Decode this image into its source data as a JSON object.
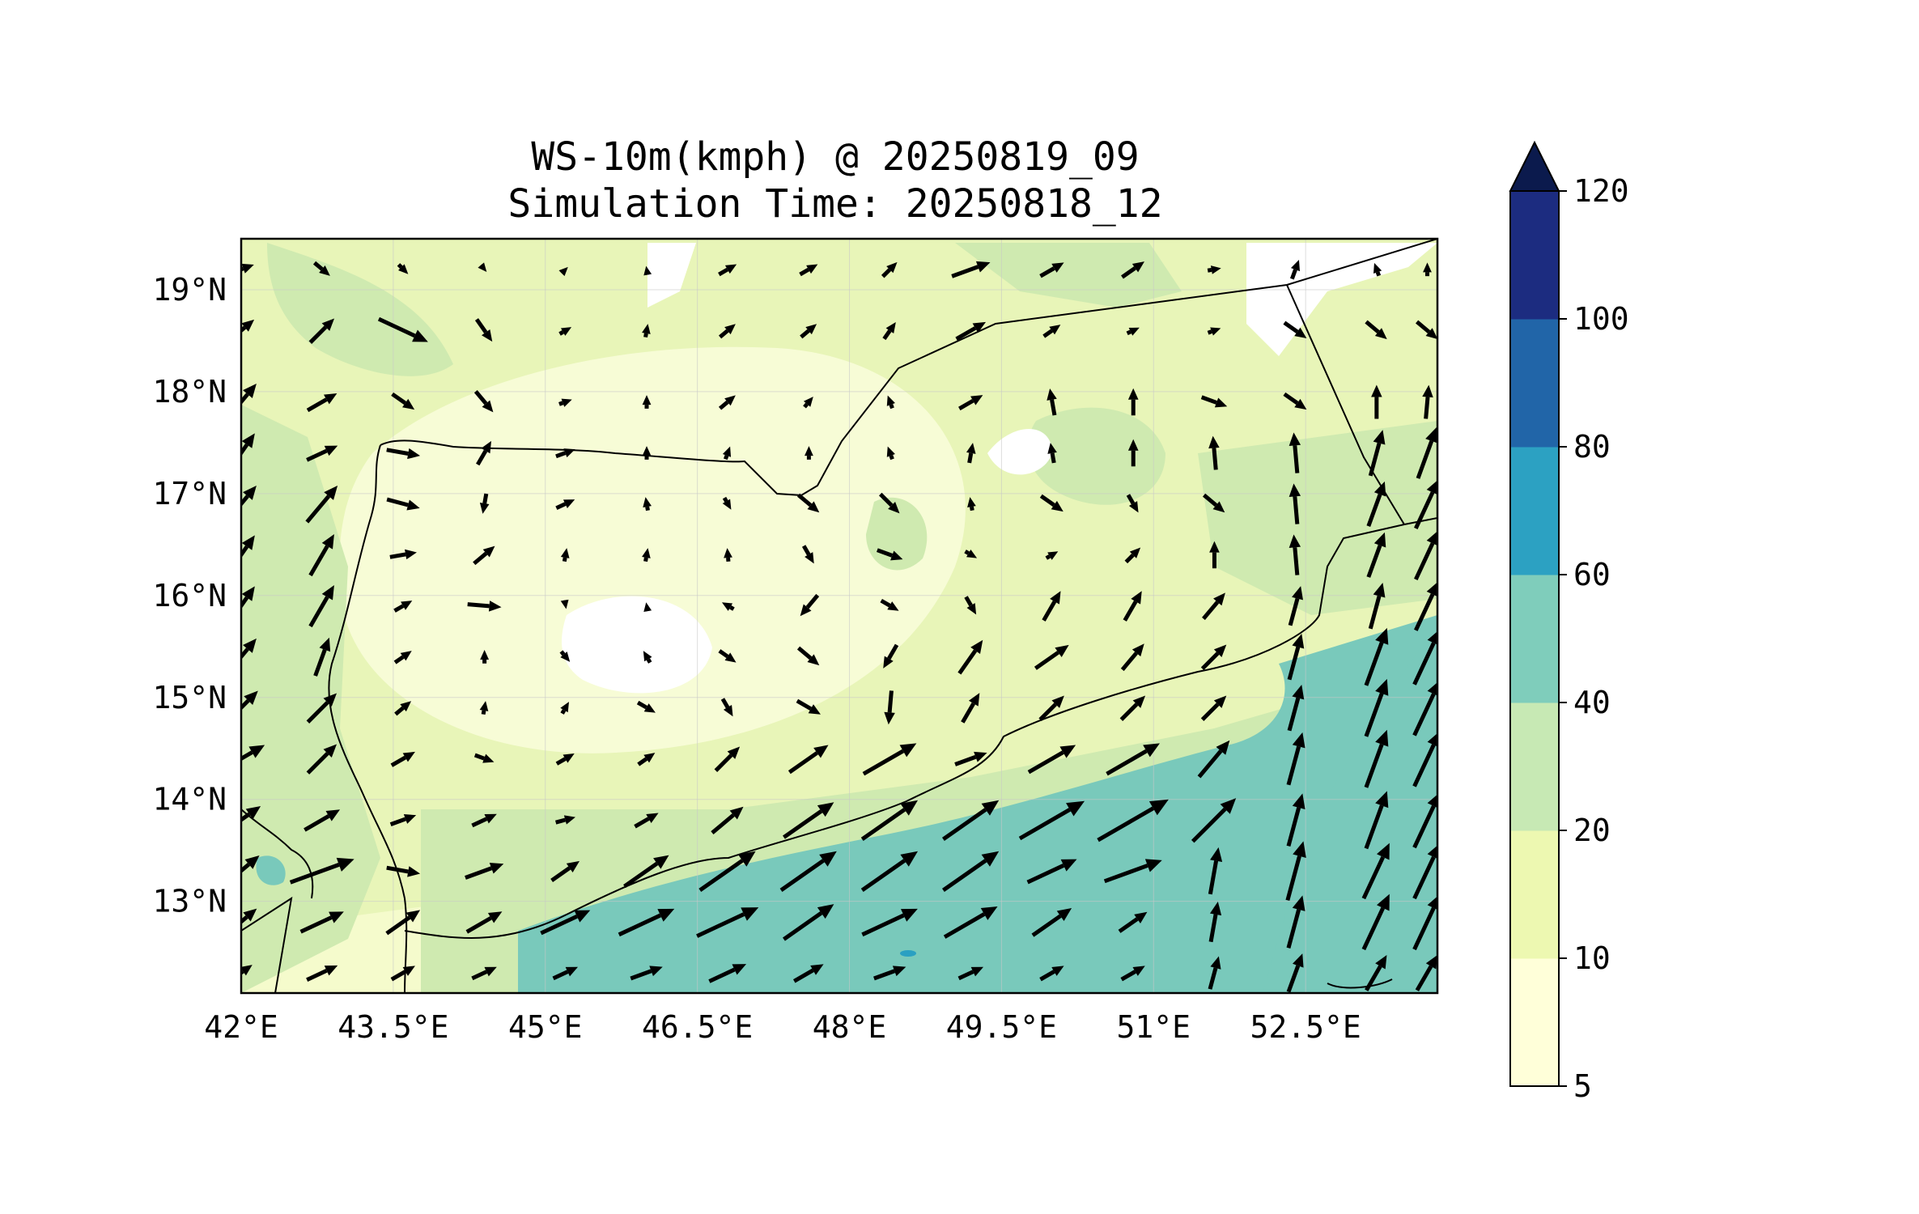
{
  "title": {
    "line1": "WS-10m(kmph) @ 20250819_09",
    "line2": "Simulation Time: 20250818_12"
  },
  "map": {
    "lon_range": [
      42,
      53.8
    ],
    "lat_range": [
      12.1,
      19.5
    ],
    "lon_ticks": [
      "42°E",
      "43.5°E",
      "45°E",
      "46.5°E",
      "48°E",
      "49.5°E",
      "51°E",
      "52.5°E"
    ],
    "lat_ticks": [
      "19°N",
      "18°N",
      "17°N",
      "16°N",
      "15°N",
      "14°N",
      "13°N"
    ],
    "gridlines": true,
    "region_colors": {
      "land_light": "#f5fbcc",
      "land_mid": "#e8f5b8",
      "land_green": "#cfeab0",
      "calm": "#ffffff",
      "sea_teal": "#79c9bb",
      "sea_deep": "#2aa0c2"
    },
    "border_color": "#000000"
  },
  "colorbar": {
    "levels": [
      "5",
      "10",
      "20",
      "40",
      "60",
      "80",
      "100",
      "120"
    ],
    "colors": [
      "#ffffd9",
      "#edf8b1",
      "#c7e9b4",
      "#7fcdbb",
      "#2ca1c2",
      "#2165a8",
      "#1c2c80"
    ],
    "extend_color": "#0b1a4d",
    "extend": "max"
  },
  "wind_vectors": {
    "lon": [
      42,
      42.8,
      43.6,
      44.4,
      45.2,
      46,
      46.8,
      47.6,
      48.4,
      49.2,
      50,
      50.8,
      51.6,
      52.4,
      53.2,
      53.7
    ],
    "lat": [
      19.2,
      18.6,
      17.9,
      17.4,
      16.9,
      16.4,
      15.9,
      15.4,
      14.9,
      14.4,
      13.8,
      13.3,
      12.8,
      12.3
    ],
    "rows": [
      [
        [
          8,
          20
        ],
        [
          6,
          -40
        ],
        [
          4,
          -45
        ],
        [
          2,
          -50
        ],
        [
          2,
          45
        ],
        [
          2,
          100
        ],
        [
          6,
          30
        ],
        [
          6,
          30
        ],
        [
          6,
          45
        ],
        [
          12,
          20
        ],
        [
          8,
          30
        ],
        [
          8,
          35
        ],
        [
          4,
          10
        ],
        [
          6,
          70
        ],
        [
          4,
          110
        ],
        [
          4,
          90
        ]
      ],
      [
        [
          10,
          40
        ],
        [
          10,
          45
        ],
        [
          16,
          -25
        ],
        [
          8,
          -55
        ],
        [
          4,
          30
        ],
        [
          4,
          80
        ],
        [
          6,
          40
        ],
        [
          6,
          40
        ],
        [
          6,
          55
        ],
        [
          10,
          30
        ],
        [
          6,
          35
        ],
        [
          4,
          25
        ],
        [
          4,
          20
        ],
        [
          8,
          -35
        ],
        [
          8,
          -40
        ],
        [
          8,
          -40
        ]
      ],
      [
        [
          14,
          50
        ],
        [
          10,
          30
        ],
        [
          8,
          -35
        ],
        [
          8,
          -50
        ],
        [
          4,
          20
        ],
        [
          4,
          90
        ],
        [
          6,
          40
        ],
        [
          4,
          50
        ],
        [
          4,
          110
        ],
        [
          8,
          30
        ],
        [
          8,
          100
        ],
        [
          8,
          90
        ],
        [
          8,
          -20
        ],
        [
          8,
          -35
        ],
        [
          10,
          90
        ],
        [
          10,
          85
        ]
      ],
      [
        [
          14,
          55
        ],
        [
          10,
          25
        ],
        [
          10,
          -10
        ],
        [
          8,
          60
        ],
        [
          6,
          20
        ],
        [
          4,
          90
        ],
        [
          4,
          70
        ],
        [
          4,
          90
        ],
        [
          4,
          110
        ],
        [
          6,
          80
        ],
        [
          6,
          100
        ],
        [
          8,
          90
        ],
        [
          10,
          95
        ],
        [
          12,
          95
        ],
        [
          14,
          75
        ],
        [
          16,
          70
        ]
      ],
      [
        [
          14,
          50
        ],
        [
          14,
          50
        ],
        [
          10,
          -15
        ],
        [
          6,
          -100
        ],
        [
          6,
          25
        ],
        [
          4,
          100
        ],
        [
          4,
          -60
        ],
        [
          8,
          -40
        ],
        [
          8,
          -45
        ],
        [
          4,
          100
        ],
        [
          8,
          -35
        ],
        [
          6,
          -60
        ],
        [
          8,
          -40
        ],
        [
          12,
          95
        ],
        [
          14,
          70
        ],
        [
          16,
          65
        ]
      ],
      [
        [
          14,
          55
        ],
        [
          14,
          60
        ],
        [
          8,
          10
        ],
        [
          8,
          40
        ],
        [
          4,
          80
        ],
        [
          4,
          80
        ],
        [
          4,
          95
        ],
        [
          6,
          -60
        ],
        [
          8,
          -20
        ],
        [
          4,
          -30
        ],
        [
          4,
          30
        ],
        [
          6,
          45
        ],
        [
          8,
          90
        ],
        [
          12,
          95
        ],
        [
          14,
          70
        ],
        [
          16,
          65
        ]
      ],
      [
        [
          14,
          55
        ],
        [
          14,
          60
        ],
        [
          6,
          30
        ],
        [
          10,
          -5
        ],
        [
          2,
          -80
        ],
        [
          2,
          100
        ],
        [
          4,
          150
        ],
        [
          8,
          -130
        ],
        [
          6,
          -30
        ],
        [
          6,
          -60
        ],
        [
          10,
          60
        ],
        [
          10,
          60
        ],
        [
          10,
          50
        ],
        [
          12,
          75
        ],
        [
          14,
          75
        ],
        [
          16,
          65
        ]
      ],
      [
        [
          14,
          50
        ],
        [
          12,
          70
        ],
        [
          6,
          35
        ],
        [
          4,
          90
        ],
        [
          4,
          -50
        ],
        [
          4,
          120
        ],
        [
          6,
          -35
        ],
        [
          8,
          -40
        ],
        [
          8,
          -120
        ],
        [
          12,
          55
        ],
        [
          12,
          35
        ],
        [
          10,
          50
        ],
        [
          10,
          45
        ],
        [
          14,
          75
        ],
        [
          18,
          70
        ],
        [
          18,
          65
        ]
      ],
      [
        [
          14,
          45
        ],
        [
          12,
          45
        ],
        [
          6,
          40
        ],
        [
          4,
          80
        ],
        [
          4,
          60
        ],
        [
          6,
          -30
        ],
        [
          6,
          -60
        ],
        [
          8,
          -30
        ],
        [
          10,
          -95
        ],
        [
          10,
          60
        ],
        [
          10,
          45
        ],
        [
          10,
          45
        ],
        [
          10,
          45
        ],
        [
          14,
          75
        ],
        [
          18,
          70
        ],
        [
          18,
          65
        ]
      ],
      [
        [
          16,
          30
        ],
        [
          12,
          45
        ],
        [
          8,
          30
        ],
        [
          6,
          -20
        ],
        [
          6,
          30
        ],
        [
          6,
          35
        ],
        [
          10,
          45
        ],
        [
          14,
          35
        ],
        [
          18,
          30
        ],
        [
          10,
          20
        ],
        [
          16,
          30
        ],
        [
          18,
          30
        ],
        [
          14,
          50
        ],
        [
          16,
          75
        ],
        [
          18,
          70
        ],
        [
          18,
          65
        ]
      ],
      [
        [
          14,
          35
        ],
        [
          12,
          30
        ],
        [
          8,
          20
        ],
        [
          8,
          25
        ],
        [
          6,
          15
        ],
        [
          8,
          30
        ],
        [
          12,
          40
        ],
        [
          18,
          35
        ],
        [
          20,
          35
        ],
        [
          20,
          35
        ],
        [
          22,
          30
        ],
        [
          24,
          30
        ],
        [
          18,
          45
        ],
        [
          16,
          75
        ],
        [
          18,
          70
        ],
        [
          18,
          65
        ]
      ],
      [
        [
          14,
          40
        ],
        [
          20,
          20
        ],
        [
          10,
          -10
        ],
        [
          12,
          20
        ],
        [
          10,
          35
        ],
        [
          16,
          35
        ],
        [
          20,
          35
        ],
        [
          20,
          35
        ],
        [
          20,
          35
        ],
        [
          20,
          35
        ],
        [
          16,
          25
        ],
        [
          18,
          20
        ],
        [
          14,
          80
        ],
        [
          18,
          75
        ],
        [
          18,
          65
        ],
        [
          18,
          65
        ]
      ],
      [
        [
          12,
          40
        ],
        [
          14,
          25
        ],
        [
          12,
          35
        ],
        [
          12,
          30
        ],
        [
          16,
          25
        ],
        [
          18,
          25
        ],
        [
          20,
          25
        ],
        [
          18,
          35
        ],
        [
          18,
          25
        ],
        [
          18,
          30
        ],
        [
          14,
          35
        ],
        [
          10,
          35
        ],
        [
          12,
          80
        ],
        [
          16,
          75
        ],
        [
          18,
          65
        ],
        [
          18,
          65
        ]
      ],
      [
        [
          8,
          35
        ],
        [
          10,
          25
        ],
        [
          8,
          30
        ],
        [
          8,
          25
        ],
        [
          8,
          25
        ],
        [
          10,
          20
        ],
        [
          12,
          25
        ],
        [
          10,
          30
        ],
        [
          10,
          20
        ],
        [
          8,
          25
        ],
        [
          8,
          30
        ],
        [
          8,
          30
        ],
        [
          10,
          75
        ],
        [
          12,
          70
        ],
        [
          12,
          60
        ],
        [
          12,
          60
        ]
      ]
    ]
  }
}
